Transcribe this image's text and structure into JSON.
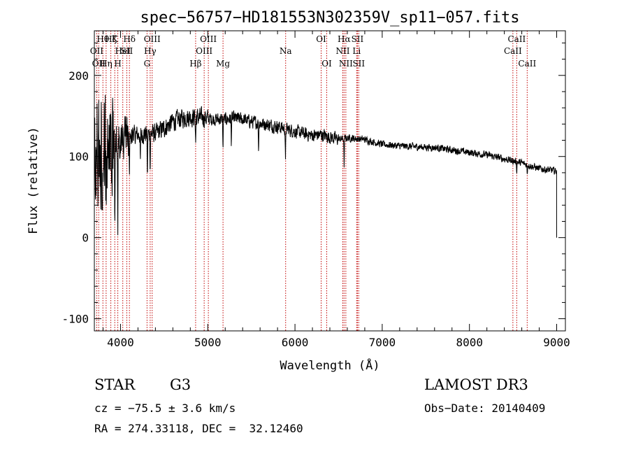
{
  "chart_data": {
    "type": "line",
    "title": "spec−56757−HD181553N302359V_sp11−057.fits",
    "xlabel": "Wavelength (Å)",
    "ylabel": "Flux (relative)",
    "xlim": [
      3700,
      9100
    ],
    "ylim": [
      -115,
      255
    ],
    "x_ticks": [
      4000,
      5000,
      6000,
      7000,
      8000,
      9000
    ],
    "y_ticks": [
      -100,
      0,
      100,
      200
    ],
    "grid": false,
    "continuum": {
      "x": [
        3700,
        3750,
        3800,
        3850,
        3900,
        3950,
        4000,
        4100,
        4200,
        4300,
        4400,
        4500,
        4600,
        4700,
        4800,
        4900,
        5000,
        5100,
        5200,
        5300,
        5400,
        5500,
        5600,
        5700,
        5800,
        5900,
        6000,
        6100,
        6200,
        6300,
        6400,
        6500,
        6600,
        6700,
        6800,
        6900,
        7000,
        7200,
        7400,
        7600,
        7800,
        8000,
        8200,
        8400,
        8600,
        8800,
        9000
      ],
      "y": [
        110,
        112,
        110,
        112,
        115,
        118,
        120,
        124,
        127,
        128,
        128,
        135,
        143,
        147,
        149,
        148,
        147,
        146,
        146,
        147,
        146,
        143,
        141,
        139,
        137,
        134,
        131,
        128,
        126,
        127,
        124,
        121,
        123,
        122,
        121,
        118,
        115,
        113,
        112,
        111,
        108,
        105,
        102,
        97,
        92,
        85,
        82
      ]
    },
    "noise_level": [
      {
        "x": [
          3700,
          3920
        ],
        "amplitude": 95
      },
      {
        "x": [
          3920,
          4100
        ],
        "amplitude": 35
      },
      {
        "x": [
          4100,
          5000
        ],
        "amplitude": 16
      },
      {
        "x": [
          5000,
          6500
        ],
        "amplitude": 11
      },
      {
        "x": [
          6500,
          9000
        ],
        "amplitude": 6
      }
    ],
    "absorption_features": [
      {
        "x": 3934,
        "depth": 110
      },
      {
        "x": 3969,
        "depth": 100
      },
      {
        "x": 4102,
        "depth": 45
      },
      {
        "x": 4227,
        "depth": 40
      },
      {
        "x": 4308,
        "depth": 60
      },
      {
        "x": 4340,
        "depth": 45
      },
      {
        "x": 4861,
        "depth": 35
      },
      {
        "x": 5175,
        "depth": 40
      },
      {
        "x": 5270,
        "depth": 30
      },
      {
        "x": 5582,
        "depth": 35
      },
      {
        "x": 5891,
        "depth": 45
      },
      {
        "x": 6563,
        "depth": 35
      },
      {
        "x": 8542,
        "depth": 12
      },
      {
        "x": 8662,
        "depth": 12
      }
    ],
    "end_drop": {
      "x": 9000,
      "y": 0
    },
    "line_markers": [
      {
        "x": 3727,
        "label": "OII",
        "row": 2
      },
      {
        "x": 3750,
        "label": "OII",
        "row": 3
      },
      {
        "x": 3798,
        "label": "Hθ",
        "row": 1
      },
      {
        "x": 3835,
        "label": "Hη",
        "row": 3
      },
      {
        "x": 3889,
        "label": "Hζ",
        "row": 1
      },
      {
        "x": 3934,
        "label": "K",
        "row": 1
      },
      {
        "x": 3969,
        "label": "H",
        "row": 3
      },
      {
        "x": 4026,
        "label": "HeI",
        "row": 2
      },
      {
        "x": 4072,
        "label": "SII",
        "row": 2
      },
      {
        "x": 4102,
        "label": "Hδ",
        "row": 1
      },
      {
        "x": 4304,
        "label": "G",
        "row": 3
      },
      {
        "x": 4340,
        "label": "Hγ",
        "row": 2
      },
      {
        "x": 4363,
        "label": "OIII",
        "row": 1
      },
      {
        "x": 4861,
        "label": "Hβ",
        "row": 3
      },
      {
        "x": 4959,
        "label": "OIII",
        "row": 2
      },
      {
        "x": 5007,
        "label": "OIII",
        "row": 1
      },
      {
        "x": 5175,
        "label": "Mg",
        "row": 3
      },
      {
        "x": 5893,
        "label": "Na",
        "row": 2
      },
      {
        "x": 6300,
        "label": "OI",
        "row": 1
      },
      {
        "x": 6364,
        "label": "OI",
        "row": 3
      },
      {
        "x": 6548,
        "label": "NII",
        "row": 2
      },
      {
        "x": 6563,
        "label": "Hα",
        "row": 1
      },
      {
        "x": 6583,
        "label": "NII",
        "row": 3
      },
      {
        "x": 6707,
        "label": "Li",
        "row": 2
      },
      {
        "x": 6716,
        "label": "SII",
        "row": 1
      },
      {
        "x": 6731,
        "label": "SII",
        "row": 3
      },
      {
        "x": 8498,
        "label": "CaII",
        "row": 2
      },
      {
        "x": 8542,
        "label": "CaII",
        "row": 1
      },
      {
        "x": 8662,
        "label": "CaII",
        "row": 3
      }
    ],
    "colors": {
      "spectrum": "#000000",
      "markers": "#c00000",
      "axes": "#000000"
    }
  },
  "info": {
    "object_class": "STAR",
    "subclass": "G3",
    "survey": "LAMOST DR3",
    "redshift": "cz = −75.5 ± 3.6 km/s",
    "obs_date": "Obs−Date: 20140409",
    "coords": "RA = 274.33118, DEC =  32.12460"
  }
}
